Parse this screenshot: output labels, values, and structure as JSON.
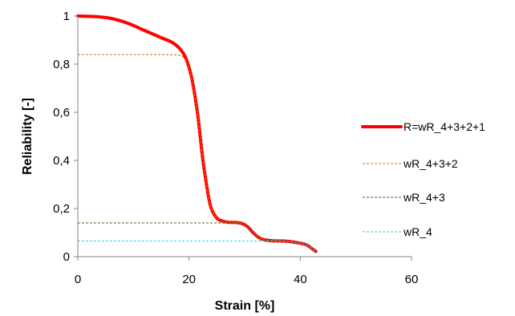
{
  "chart_data": {
    "type": "line",
    "title": "",
    "xlabel": "Strain [%]",
    "ylabel": "Reliability [-]",
    "xlim": [
      0,
      60
    ],
    "ylim": [
      0,
      1
    ],
    "xticks": [
      0,
      20,
      40,
      60
    ],
    "xtick_labels": [
      "0",
      "20",
      "40",
      "60"
    ],
    "yticks": [
      0,
      0.2,
      0.4,
      0.6,
      0.8,
      1
    ],
    "ytick_labels": [
      "0",
      "0,2",
      "0,4",
      "0,6",
      "0,8",
      "1"
    ],
    "grid": false,
    "legend_position": "right",
    "series": [
      {
        "name": "R=wR_4+3+2+1",
        "color": "#ff0000",
        "style": "solid-thick",
        "points": [
          [
            0,
            1.0
          ],
          [
            3,
            0.998
          ],
          [
            6,
            0.99
          ],
          [
            9,
            0.97
          ],
          [
            12,
            0.94
          ],
          [
            15,
            0.91
          ],
          [
            17,
            0.89
          ],
          [
            18.5,
            0.86
          ],
          [
            19.5,
            0.82
          ],
          [
            20.5,
            0.74
          ],
          [
            21.5,
            0.6
          ],
          [
            22,
            0.5
          ],
          [
            22.5,
            0.4
          ],
          [
            23,
            0.32
          ],
          [
            23.5,
            0.25
          ],
          [
            24,
            0.2
          ],
          [
            25,
            0.16
          ],
          [
            26,
            0.148
          ],
          [
            27,
            0.143
          ],
          [
            28.5,
            0.142
          ],
          [
            29.5,
            0.138
          ],
          [
            30.5,
            0.125
          ],
          [
            31.5,
            0.1
          ],
          [
            32.5,
            0.08
          ],
          [
            33.5,
            0.07
          ],
          [
            35,
            0.066
          ],
          [
            37,
            0.065
          ],
          [
            39,
            0.06
          ],
          [
            41,
            0.05
          ],
          [
            42,
            0.035
          ],
          [
            42.8,
            0.022
          ]
        ]
      },
      {
        "name": "wR_4+3+2",
        "color": "#e46c0a",
        "style": "dashed",
        "points": [
          [
            0,
            0.84
          ],
          [
            5,
            0.84
          ],
          [
            10,
            0.84
          ],
          [
            15,
            0.84
          ],
          [
            17,
            0.839
          ],
          [
            18.5,
            0.835
          ],
          [
            19.5,
            0.81
          ],
          [
            20.5,
            0.73
          ],
          [
            21.5,
            0.6
          ],
          [
            22,
            0.5
          ],
          [
            22.5,
            0.4
          ],
          [
            23,
            0.32
          ],
          [
            23.5,
            0.25
          ],
          [
            24,
            0.2
          ],
          [
            25,
            0.16
          ],
          [
            26,
            0.148
          ],
          [
            27,
            0.143
          ],
          [
            28.5,
            0.142
          ],
          [
            29.5,
            0.138
          ],
          [
            30.5,
            0.125
          ],
          [
            31.5,
            0.1
          ],
          [
            32.5,
            0.08
          ],
          [
            33.5,
            0.07
          ],
          [
            35,
            0.066
          ],
          [
            37,
            0.065
          ],
          [
            39,
            0.06
          ],
          [
            41,
            0.05
          ],
          [
            42,
            0.035
          ],
          [
            42.8,
            0.022
          ]
        ]
      },
      {
        "name": "wR_4+3",
        "color": "#4f6228",
        "style": "dashed",
        "points": [
          [
            0,
            0.14
          ],
          [
            10,
            0.14
          ],
          [
            20,
            0.14
          ],
          [
            26,
            0.14
          ],
          [
            28.5,
            0.14
          ],
          [
            29.5,
            0.137
          ],
          [
            30.5,
            0.125
          ],
          [
            31.5,
            0.1
          ],
          [
            32.5,
            0.08
          ],
          [
            33.5,
            0.07
          ],
          [
            35,
            0.066
          ],
          [
            37,
            0.065
          ],
          [
            39,
            0.06
          ],
          [
            41,
            0.05
          ],
          [
            42,
            0.035
          ],
          [
            42.8,
            0.022
          ]
        ]
      },
      {
        "name": "wR_4",
        "color": "#33ccdd",
        "style": "dashed",
        "points": [
          [
            0,
            0.065
          ],
          [
            10,
            0.065
          ],
          [
            20,
            0.065
          ],
          [
            30,
            0.065
          ],
          [
            34,
            0.065
          ],
          [
            37,
            0.064
          ],
          [
            39,
            0.06
          ],
          [
            41,
            0.05
          ],
          [
            42,
            0.035
          ],
          [
            42.8,
            0.022
          ]
        ]
      }
    ]
  }
}
